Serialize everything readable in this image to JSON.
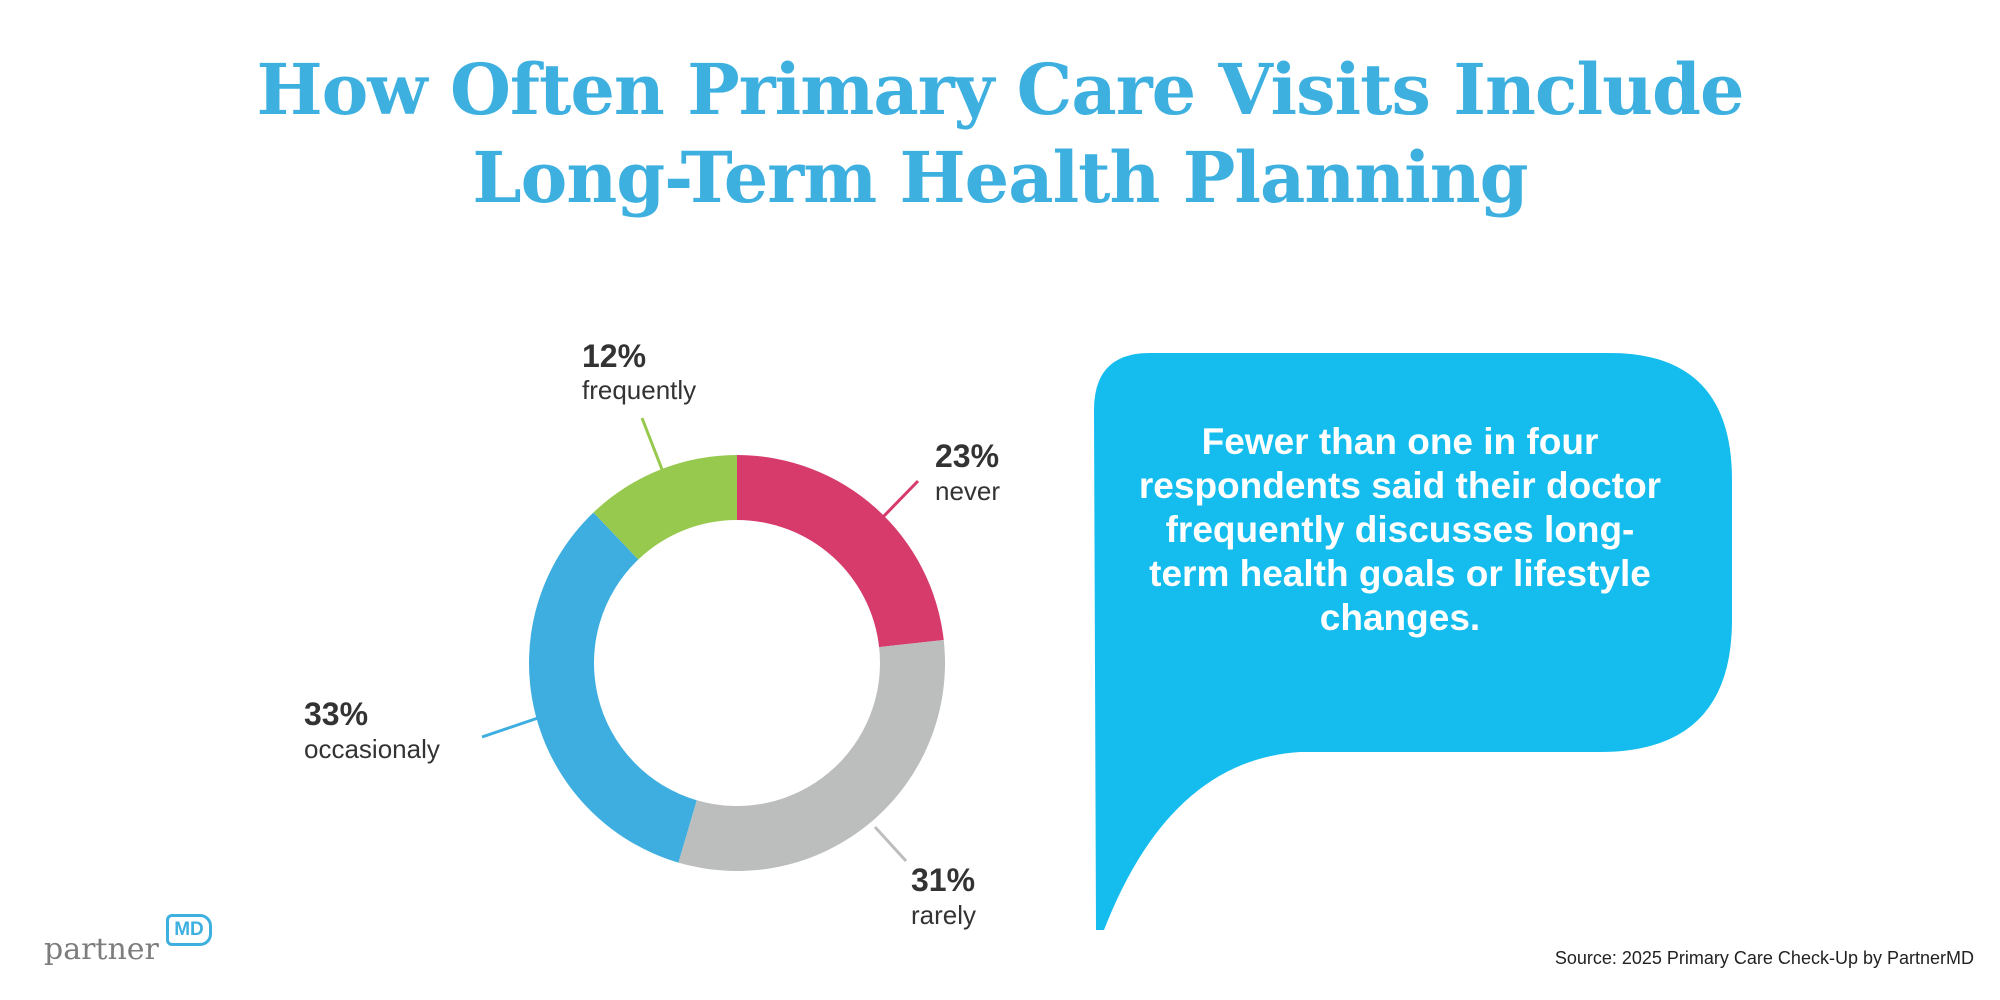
{
  "header": {
    "title_line1": "How Often Primary Care Visits Include",
    "title_line2": "Long-Term Health Planning"
  },
  "chart_data": {
    "type": "pie",
    "style": "donut",
    "title": "How Often Primary Care Visits Include Long-Term Health Planning",
    "slices": [
      {
        "label": "never",
        "value": 23,
        "value_label": "23%",
        "color": "#d63b6c"
      },
      {
        "label": "rarely",
        "value": 31,
        "value_label": "31%",
        "color": "#bcbdbd"
      },
      {
        "label": "occasionaly",
        "value": 33,
        "value_label": "33%",
        "color": "#3eaee0"
      },
      {
        "label": "frequently",
        "value": 12,
        "value_label": "12%",
        "color": "#97c94f"
      }
    ]
  },
  "callout": {
    "text": "Fewer than one in four respondents said their doctor frequently discusses long-term health goals or lifestyle changes.",
    "color": "#14bdee"
  },
  "footer": {
    "source": "Source: 2025 Primary Care Check-Up by PartnerMD",
    "logo_text": "partnerMD"
  }
}
